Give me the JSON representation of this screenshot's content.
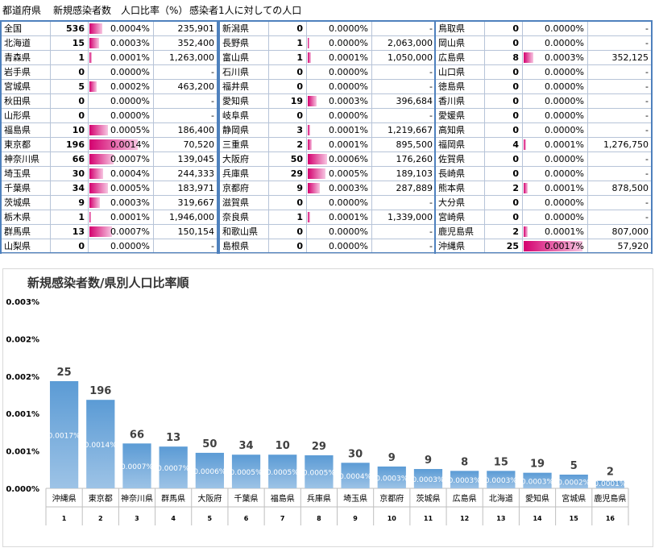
{
  "header": {
    "col_pref": "都道府県",
    "col_cases": "新規感染者数",
    "col_pct": "人口比率（%）",
    "col_per": "感染者1人に対しての人口"
  },
  "table": [
    [
      {
        "name": "全国",
        "cases": "536",
        "pct": "0.0004%",
        "per": "235,901",
        "ratio": 0.00038
      },
      {
        "name": "北海道",
        "cases": "15",
        "pct": "0.0003%",
        "per": "352,400",
        "ratio": 0.00028
      },
      {
        "name": "青森県",
        "cases": "1",
        "pct": "0.0001%",
        "per": "1,263,000",
        "ratio": 8e-05
      },
      {
        "name": "岩手県",
        "cases": "0",
        "pct": "0.0000%",
        "per": "-",
        "ratio": 0
      },
      {
        "name": "宮城県",
        "cases": "5",
        "pct": "0.0002%",
        "per": "463,200",
        "ratio": 0.00022
      },
      {
        "name": "秋田県",
        "cases": "0",
        "pct": "0.0000%",
        "per": "-",
        "ratio": 0
      },
      {
        "name": "山形県",
        "cases": "0",
        "pct": "0.0000%",
        "per": "-",
        "ratio": 0
      },
      {
        "name": "福島県",
        "cases": "10",
        "pct": "0.0005%",
        "per": "186,400",
        "ratio": 0.00054
      },
      {
        "name": "東京都",
        "cases": "196",
        "pct": "0.0014%",
        "per": "70,520",
        "ratio": 0.00142
      },
      {
        "name": "神奈川県",
        "cases": "66",
        "pct": "0.0007%",
        "per": "139,045",
        "ratio": 0.00072
      },
      {
        "name": "埼玉県",
        "cases": "30",
        "pct": "0.0004%",
        "per": "244,333",
        "ratio": 0.00041
      },
      {
        "name": "千葉県",
        "cases": "34",
        "pct": "0.0005%",
        "per": "183,971",
        "ratio": 0.00054
      },
      {
        "name": "茨城県",
        "cases": "9",
        "pct": "0.0003%",
        "per": "319,667",
        "ratio": 0.00031
      },
      {
        "name": "栃木県",
        "cases": "1",
        "pct": "0.0001%",
        "per": "1,946,000",
        "ratio": 5e-05
      },
      {
        "name": "群馬県",
        "cases": "13",
        "pct": "0.0007%",
        "per": "150,154",
        "ratio": 0.00067
      },
      {
        "name": "山梨県",
        "cases": "0",
        "pct": "0.0000%",
        "per": "-",
        "ratio": 0
      }
    ],
    [
      {
        "name": "新潟県",
        "cases": "0",
        "pct": "0.0000%",
        "per": "-",
        "ratio": 0
      },
      {
        "name": "長野県",
        "cases": "1",
        "pct": "0.0000%",
        "per": "2,063,000",
        "ratio": 5e-05
      },
      {
        "name": "富山県",
        "cases": "1",
        "pct": "0.0001%",
        "per": "1,050,000",
        "ratio": 0.0001
      },
      {
        "name": "石川県",
        "cases": "0",
        "pct": "0.0000%",
        "per": "-",
        "ratio": 0
      },
      {
        "name": "福井県",
        "cases": "0",
        "pct": "0.0000%",
        "per": "-",
        "ratio": 0
      },
      {
        "name": "愛知県",
        "cases": "19",
        "pct": "0.0003%",
        "per": "396,684",
        "ratio": 0.00025
      },
      {
        "name": "岐阜県",
        "cases": "0",
        "pct": "0.0000%",
        "per": "-",
        "ratio": 0
      },
      {
        "name": "静岡県",
        "cases": "3",
        "pct": "0.0001%",
        "per": "1,219,667",
        "ratio": 8e-05
      },
      {
        "name": "三重県",
        "cases": "2",
        "pct": "0.0001%",
        "per": "895,500",
        "ratio": 0.00011
      },
      {
        "name": "大阪府",
        "cases": "50",
        "pct": "0.0006%",
        "per": "176,260",
        "ratio": 0.00057
      },
      {
        "name": "兵庫県",
        "cases": "29",
        "pct": "0.0005%",
        "per": "189,103",
        "ratio": 0.00053
      },
      {
        "name": "京都府",
        "cases": "9",
        "pct": "0.0003%",
        "per": "287,889",
        "ratio": 0.00035
      },
      {
        "name": "滋賀県",
        "cases": "0",
        "pct": "0.0000%",
        "per": "-",
        "ratio": 0
      },
      {
        "name": "奈良県",
        "cases": "1",
        "pct": "0.0001%",
        "per": "1,339,000",
        "ratio": 7e-05
      },
      {
        "name": "和歌山県",
        "cases": "0",
        "pct": "0.0000%",
        "per": "-",
        "ratio": 0
      },
      {
        "name": "島根県",
        "cases": "0",
        "pct": "0.0000%",
        "per": "-",
        "ratio": 0
      }
    ],
    [
      {
        "name": "鳥取県",
        "cases": "0",
        "pct": "0.0000%",
        "per": "-",
        "ratio": 0
      },
      {
        "name": "岡山県",
        "cases": "0",
        "pct": "0.0000%",
        "per": "-",
        "ratio": 0
      },
      {
        "name": "広島県",
        "cases": "8",
        "pct": "0.0003%",
        "per": "352,125",
        "ratio": 0.00028
      },
      {
        "name": "山口県",
        "cases": "0",
        "pct": "0.0000%",
        "per": "-",
        "ratio": 0
      },
      {
        "name": "徳島県",
        "cases": "0",
        "pct": "0.0000%",
        "per": "-",
        "ratio": 0
      },
      {
        "name": "香川県",
        "cases": "0",
        "pct": "0.0000%",
        "per": "-",
        "ratio": 0
      },
      {
        "name": "愛媛県",
        "cases": "0",
        "pct": "0.0000%",
        "per": "-",
        "ratio": 0
      },
      {
        "name": "高知県",
        "cases": "0",
        "pct": "0.0000%",
        "per": "-",
        "ratio": 0
      },
      {
        "name": "福岡県",
        "cases": "4",
        "pct": "0.0001%",
        "per": "1,276,750",
        "ratio": 8e-05
      },
      {
        "name": "佐賀県",
        "cases": "0",
        "pct": "0.0000%",
        "per": "-",
        "ratio": 0
      },
      {
        "name": "長崎県",
        "cases": "0",
        "pct": "0.0000%",
        "per": "-",
        "ratio": 0
      },
      {
        "name": "熊本県",
        "cases": "2",
        "pct": "0.0001%",
        "per": "878,500",
        "ratio": 0.00011
      },
      {
        "name": "大分県",
        "cases": "0",
        "pct": "0.0000%",
        "per": "-",
        "ratio": 0
      },
      {
        "name": "宮崎県",
        "cases": "0",
        "pct": "0.0000%",
        "per": "-",
        "ratio": 0
      },
      {
        "name": "鹿児島県",
        "cases": "2",
        "pct": "0.0001%",
        "per": "807,000",
        "ratio": 0.00012
      },
      {
        "name": "沖縄県",
        "cases": "25",
        "pct": "0.0017%",
        "per": "57,920",
        "ratio": 0.00172
      }
    ]
  ],
  "chart_data": {
    "type": "bar",
    "title": "新規感染者数/県別人口比率順",
    "ylim": [
      0,
      0.003
    ],
    "yticks": [
      "0.000%",
      "0.001%",
      "0.001%",
      "0.002%",
      "0.002%",
      "0.003%"
    ],
    "grid": false,
    "categories": [
      "沖縄県",
      "東京都",
      "神奈川県",
      "群馬県",
      "大阪府",
      "千葉県",
      "福島県",
      "兵庫県",
      "埼玉県",
      "京都府",
      "茨城県",
      "広島県",
      "北海道",
      "愛知県",
      "宮城県",
      "鹿児島県"
    ],
    "ranks": [
      "1",
      "2",
      "3",
      "4",
      "5",
      "6",
      "7",
      "8",
      "9",
      "10",
      "11",
      "12",
      "13",
      "14",
      "15",
      "16"
    ],
    "values": [
      0.00172,
      0.00142,
      0.00072,
      0.00067,
      0.00057,
      0.00054,
      0.00054,
      0.00053,
      0.00041,
      0.00035,
      0.00031,
      0.00028,
      0.00028,
      0.00025,
      0.00022,
      0.00012
    ],
    "value_labels": [
      "0.0017%",
      "0.0014%",
      "0.0007%",
      "0.0007%",
      "0.0006%",
      "0.0005%",
      "0.0005%",
      "0.0005%",
      "0.0004%",
      "0.0003%",
      "0.0003%",
      "0.0003%",
      "0.0003%",
      "0.0003%",
      "0.0002%",
      "0.0001%"
    ],
    "case_labels": [
      "25",
      "196",
      "66",
      "13",
      "50",
      "34",
      "10",
      "29",
      "30",
      "9",
      "9",
      "8",
      "15",
      "19",
      "5",
      "2"
    ],
    "bar_color": "#5b9bd5"
  }
}
